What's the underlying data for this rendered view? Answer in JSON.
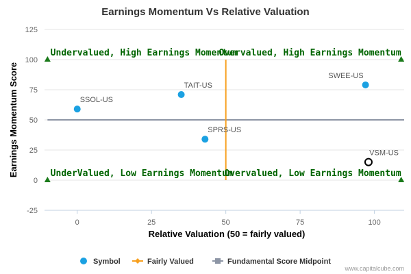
{
  "chart_data": {
    "type": "scatter",
    "title": "Earnings Momentum Vs Relative Valuation",
    "xlabel": "Relative Valuation (50 = fairly valued)",
    "ylabel": "Earnings Momentum Score",
    "xlim": [
      -11,
      110
    ],
    "ylim": [
      -25,
      125
    ],
    "x_ticks": [
      0,
      25,
      50,
      75,
      100
    ],
    "y_ticks": [
      -25,
      0,
      25,
      50,
      75,
      100,
      125
    ],
    "grid": {
      "horizontal": true,
      "vertical": false
    },
    "legend_position": "bottom-center",
    "series": [
      {
        "name": "Symbol",
        "color": "#1ba1e2",
        "points": [
          {
            "label": "SSOL-US",
            "x": 0,
            "y": 59
          },
          {
            "label": "TAIT-US",
            "x": 35,
            "y": 71
          },
          {
            "label": "SPRS-US",
            "x": 43,
            "y": 34
          },
          {
            "label": "SWEE-US",
            "x": 97,
            "y": 79
          },
          {
            "label": "VSM-US",
            "x": 98,
            "y": 15,
            "highlighted": true
          }
        ]
      },
      {
        "name": "Fairly Valued",
        "color": "#f7a020",
        "x": 50,
        "y_range": [
          0,
          100
        ]
      },
      {
        "name": "Fundamental Score Midpoint",
        "color": "#8d95a5",
        "y": 50,
        "x_range": [
          -10,
          110
        ]
      }
    ],
    "quadrant_labels": [
      {
        "text": "Undervalued, High Earnings Momentum",
        "x": -9,
        "y": 100,
        "anchor": "start"
      },
      {
        "text": "Overvalued, High Earnings Momentum",
        "x": 109,
        "y": 100,
        "anchor": "end"
      },
      {
        "text": "UnderValued, Low Earnings Momentum",
        "x": -9,
        "y": 0,
        "anchor": "start"
      },
      {
        "text": "Overvalued, Low Earnings Momentum",
        "x": 109,
        "y": 0,
        "anchor": "end"
      }
    ],
    "corner_markers": [
      {
        "x": -10,
        "y": 100
      },
      {
        "x": 109,
        "y": 100
      },
      {
        "x": -10,
        "y": 0
      },
      {
        "x": 109,
        "y": 0
      }
    ],
    "quadrant_color": "#006400",
    "marker_color": "#1a7a1a"
  },
  "credit": "www.capitalcube.com"
}
